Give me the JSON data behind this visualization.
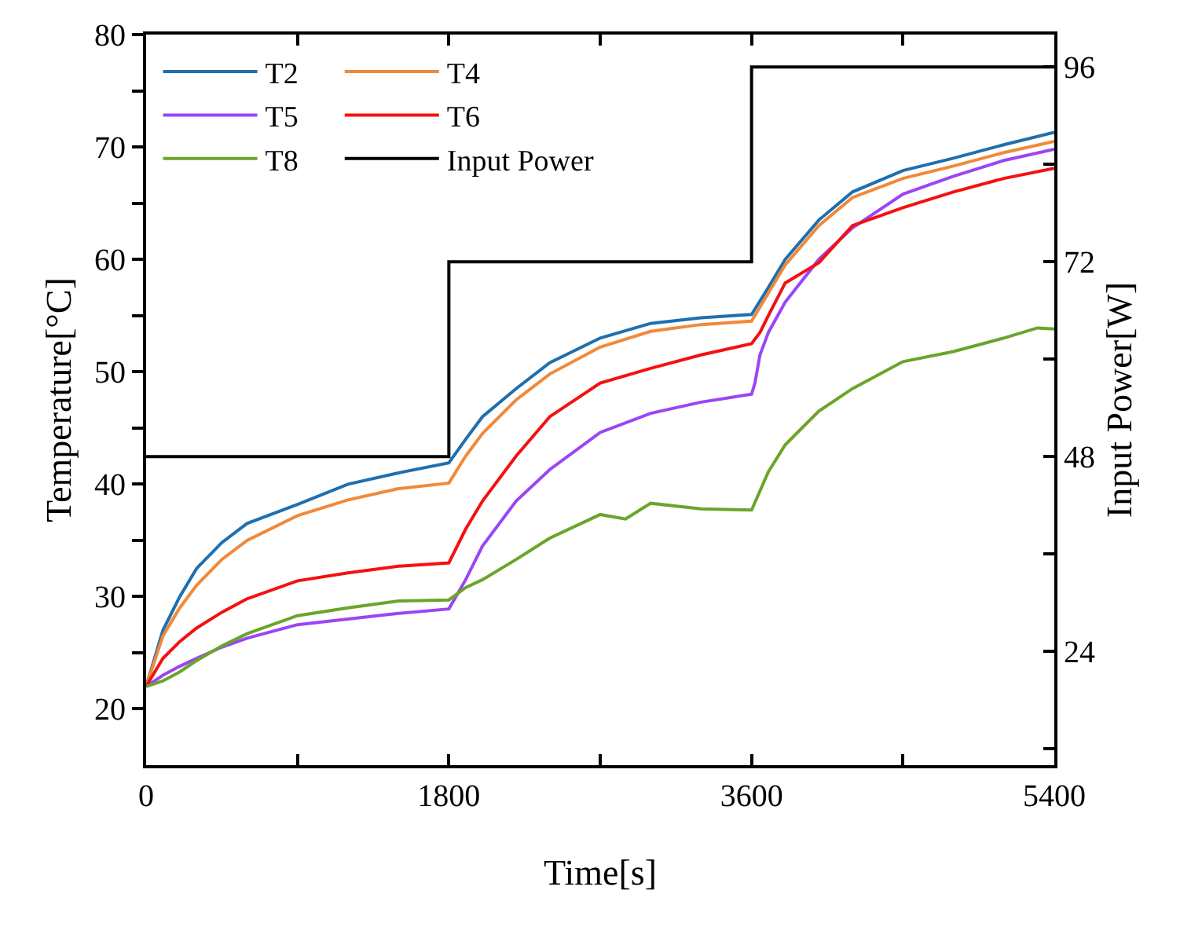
{
  "chart_data": {
    "type": "line",
    "xlabel": "Time[s]",
    "ylabel": "Temperature[°C]",
    "y2label": "Input Power[W]",
    "xlim": [
      0,
      5400
    ],
    "xticks": [
      0,
      {
        "value": 900,
        "label": null
      },
      1800,
      {
        "value": 2700,
        "label": null
      },
      3600,
      {
        "value": 4500,
        "label": null
      },
      5400
    ],
    "ylim": [
      15,
      80
    ],
    "yticks": [
      20,
      {
        "value": 25,
        "label": null
      },
      30,
      {
        "value": 35,
        "label": null
      },
      40,
      {
        "value": 45,
        "label": null
      },
      50,
      {
        "value": 55,
        "label": null
      },
      60,
      {
        "value": 65,
        "label": null
      },
      70,
      {
        "value": 75,
        "label": null
      },
      80
    ],
    "y2lim": [
      10,
      100
    ],
    "y2ticks": [
      {
        "value": 12,
        "label": null
      },
      24,
      {
        "value": 36,
        "label": null
      },
      48,
      {
        "value": 60,
        "label": null
      },
      72,
      {
        "value": 84,
        "label": null
      },
      96
    ],
    "grid": false,
    "legend": "top left",
    "marker": "none",
    "line_style": "solid",
    "series": [
      {
        "name": "T2",
        "color": "#1f6fae",
        "x": [
          0,
          100,
          200,
          300,
          450,
          600,
          900,
          1200,
          1500,
          1800,
          1900,
          2000,
          2200,
          2400,
          2700,
          3000,
          3300,
          3600,
          3700,
          3800,
          4000,
          4200,
          4500,
          4800,
          5100,
          5400
        ],
        "values": [
          22,
          27,
          30,
          32.5,
          34.8,
          36.5,
          38.2,
          40,
          41,
          41.9,
          44,
          46,
          48.5,
          50.8,
          53,
          54.3,
          54.8,
          55.1,
          57.5,
          60,
          63.5,
          66,
          67.9,
          69,
          70.2,
          71.3
        ]
      },
      {
        "name": "T4",
        "color": "#f0893a",
        "x": [
          0,
          100,
          200,
          300,
          450,
          600,
          900,
          1200,
          1500,
          1800,
          1900,
          2000,
          2200,
          2400,
          2700,
          3000,
          3300,
          3600,
          3700,
          3800,
          4000,
          4200,
          4500,
          4800,
          5100,
          5400
        ],
        "values": [
          22,
          26.5,
          29,
          31,
          33.3,
          35,
          37.2,
          38.6,
          39.6,
          40.1,
          42.5,
          44.5,
          47.5,
          49.8,
          52.2,
          53.6,
          54.2,
          54.5,
          57,
          59.5,
          63,
          65.5,
          67.2,
          68.3,
          69.5,
          70.5
        ]
      },
      {
        "name": "T5",
        "color": "#9b45f5",
        "x": [
          0,
          100,
          200,
          300,
          450,
          600,
          900,
          1200,
          1500,
          1800,
          1900,
          2000,
          2200,
          2400,
          2700,
          3000,
          3300,
          3600,
          3620,
          3650,
          3700,
          3800,
          4000,
          4200,
          4500,
          4800,
          5100,
          5400
        ],
        "values": [
          22,
          23,
          23.8,
          24.5,
          25.5,
          26.3,
          27.5,
          28,
          28.5,
          28.9,
          31.5,
          34.5,
          38.5,
          41.3,
          44.6,
          46.3,
          47.3,
          48,
          49,
          51.5,
          53.5,
          56.2,
          60,
          62.8,
          65.8,
          67.4,
          68.8,
          69.8
        ]
      },
      {
        "name": "T6",
        "color": "#f51010",
        "x": [
          0,
          100,
          200,
          300,
          450,
          600,
          900,
          1200,
          1500,
          1800,
          1900,
          2000,
          2200,
          2400,
          2700,
          3000,
          3300,
          3600,
          3650,
          3700,
          3800,
          4000,
          4200,
          4500,
          4800,
          5100,
          5400
        ],
        "values": [
          22,
          24.5,
          26,
          27.2,
          28.6,
          29.8,
          31.4,
          32.1,
          32.7,
          33,
          36,
          38.5,
          42.5,
          46,
          49,
          50.3,
          51.5,
          52.5,
          53.5,
          55,
          57.9,
          59.7,
          63,
          64.6,
          66,
          67.2,
          68.1
        ]
      },
      {
        "name": "T8",
        "color": "#6aa52a",
        "x": [
          0,
          100,
          200,
          300,
          450,
          600,
          900,
          1200,
          1500,
          1800,
          1900,
          2000,
          2200,
          2400,
          2700,
          2850,
          3000,
          3300,
          3600,
          3700,
          3800,
          4000,
          4200,
          4500,
          4800,
          5100,
          5300,
          5400
        ],
        "values": [
          22,
          22.5,
          23.3,
          24.3,
          25.6,
          26.7,
          28.3,
          29,
          29.6,
          29.7,
          30.8,
          31.5,
          33.3,
          35.2,
          37.3,
          36.9,
          38.3,
          37.8,
          37.7,
          41.1,
          43.5,
          46.5,
          48.5,
          50.9,
          51.8,
          53,
          53.9,
          53.8
        ]
      },
      {
        "name": "Input Power",
        "type": "step",
        "axis": "y2",
        "color": "#000000",
        "x": [
          0,
          1800,
          3600,
          5400
        ],
        "values": [
          48,
          72,
          96,
          96
        ]
      }
    ]
  }
}
